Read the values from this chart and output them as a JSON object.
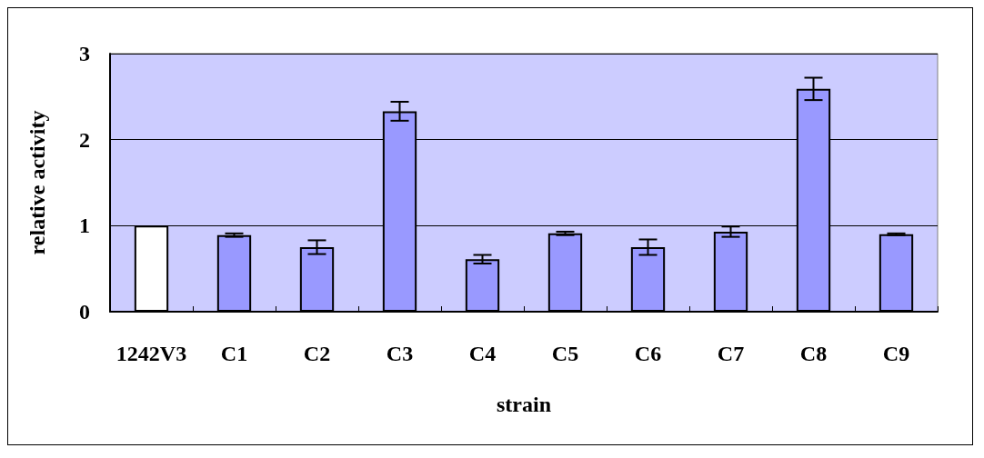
{
  "chart_data": {
    "type": "bar",
    "xlabel": "strain",
    "ylabel": "relative activity",
    "categories": [
      "1242V3",
      "C1",
      "C2",
      "C3",
      "C4",
      "C5",
      "C6",
      "C7",
      "C8",
      "C9"
    ],
    "values": [
      1.0,
      0.89,
      0.75,
      2.33,
      0.61,
      0.91,
      0.75,
      0.93,
      2.59,
      0.9
    ],
    "errors": [
      null,
      0.02,
      0.08,
      0.11,
      0.05,
      0.02,
      0.09,
      0.06,
      0.13,
      0.01
    ],
    "colors": [
      "#ffffff",
      "#9999ff",
      "#9999ff",
      "#9999ff",
      "#9999ff",
      "#9999ff",
      "#9999ff",
      "#9999ff",
      "#9999ff",
      "#9999ff"
    ],
    "ylim": [
      0,
      3
    ],
    "yticks": [
      0,
      1,
      2,
      3
    ],
    "grid": "y"
  }
}
